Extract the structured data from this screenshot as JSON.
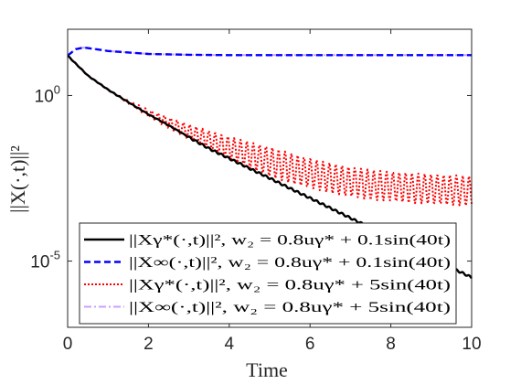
{
  "chart_data": {
    "type": "line",
    "xlabel": "Time",
    "ylabel": "||X(·,t)||²",
    "xlim": [
      0,
      10
    ],
    "ylim": [
      1e-07,
      100
    ],
    "yscale": "log",
    "xticks": [
      "0",
      "2",
      "4",
      "6",
      "8",
      "10"
    ],
    "x_tick_values": [
      0,
      2,
      4,
      6,
      8,
      10
    ],
    "yticks": [
      {
        "value": 1,
        "base": "10",
        "exp": "0"
      },
      {
        "value": 1e-05,
        "base": "10",
        "exp": "-5"
      }
    ],
    "grid": false,
    "legend_position": "bottom",
    "series": [
      {
        "name": "||Xγ*(·,t)||², w₂ = 0.8uγ* + 0.1sin(40t)",
        "color": "#000000",
        "style": "solid",
        "x": [
          0,
          0.5,
          1,
          1.5,
          2,
          2.5,
          3,
          3.5,
          4,
          4.5,
          5,
          5.5,
          6,
          6.5,
          7,
          7.5,
          8,
          8.5,
          9,
          9.5,
          10
        ],
        "y": [
          16,
          4,
          1.5,
          0.63,
          0.27,
          0.126,
          0.055,
          0.025,
          0.0126,
          0.0063,
          0.0032,
          0.00158,
          0.0008,
          0.0004,
          0.0002,
          0.0001,
          5e-05,
          2.5e-05,
          1.26e-05,
          6.3e-06,
          3.2e-06
        ]
      },
      {
        "name": "||X∞(·,t)||², w₂ = 0.8uγ* + 0.1sin(40t)",
        "color": "#0000ff",
        "style": "dashed",
        "x": [
          0,
          0.2,
          0.4,
          0.7,
          1,
          2,
          3,
          4,
          5,
          6,
          7,
          8,
          9,
          10
        ],
        "y": [
          16,
          25,
          28,
          25,
          22,
          18,
          17,
          16.5,
          16.5,
          16.5,
          16.5,
          16.5,
          16.5,
          16.5
        ]
      },
      {
        "name": "||Xγ*(·,t)||², w₂ = 0.8uγ* + 5sin(40t)",
        "color": "#ff0000",
        "style": "dotted",
        "x": [
          0,
          0.5,
          1,
          1.5,
          2,
          2.5,
          3,
          3.5,
          4,
          4.5,
          5,
          5.5,
          6,
          6.5,
          7,
          7.5,
          8,
          8.5,
          9,
          9.5,
          10
        ],
        "y": [
          16,
          4,
          1.5,
          0.63,
          0.29,
          0.15,
          0.08,
          0.045,
          0.026,
          0.016,
          0.01,
          0.0065,
          0.0045,
          0.0032,
          0.0025,
          0.002,
          0.0018,
          0.0016,
          0.0015,
          0.0014,
          0.0013
        ]
      },
      {
        "name": "||X∞(·,t)||², w₂ = 0.8uγ* + 5sin(40t)",
        "color": "#c8a0ff",
        "style": "dashdot",
        "x": [
          0,
          0.2,
          0.4,
          0.7,
          1,
          2,
          3,
          4,
          5,
          6,
          7,
          8,
          9,
          10
        ],
        "y": [
          16,
          25,
          28,
          25,
          22,
          18,
          17,
          16.5,
          16.5,
          16.5,
          16.5,
          16.5,
          16.5,
          16.5
        ]
      }
    ]
  }
}
